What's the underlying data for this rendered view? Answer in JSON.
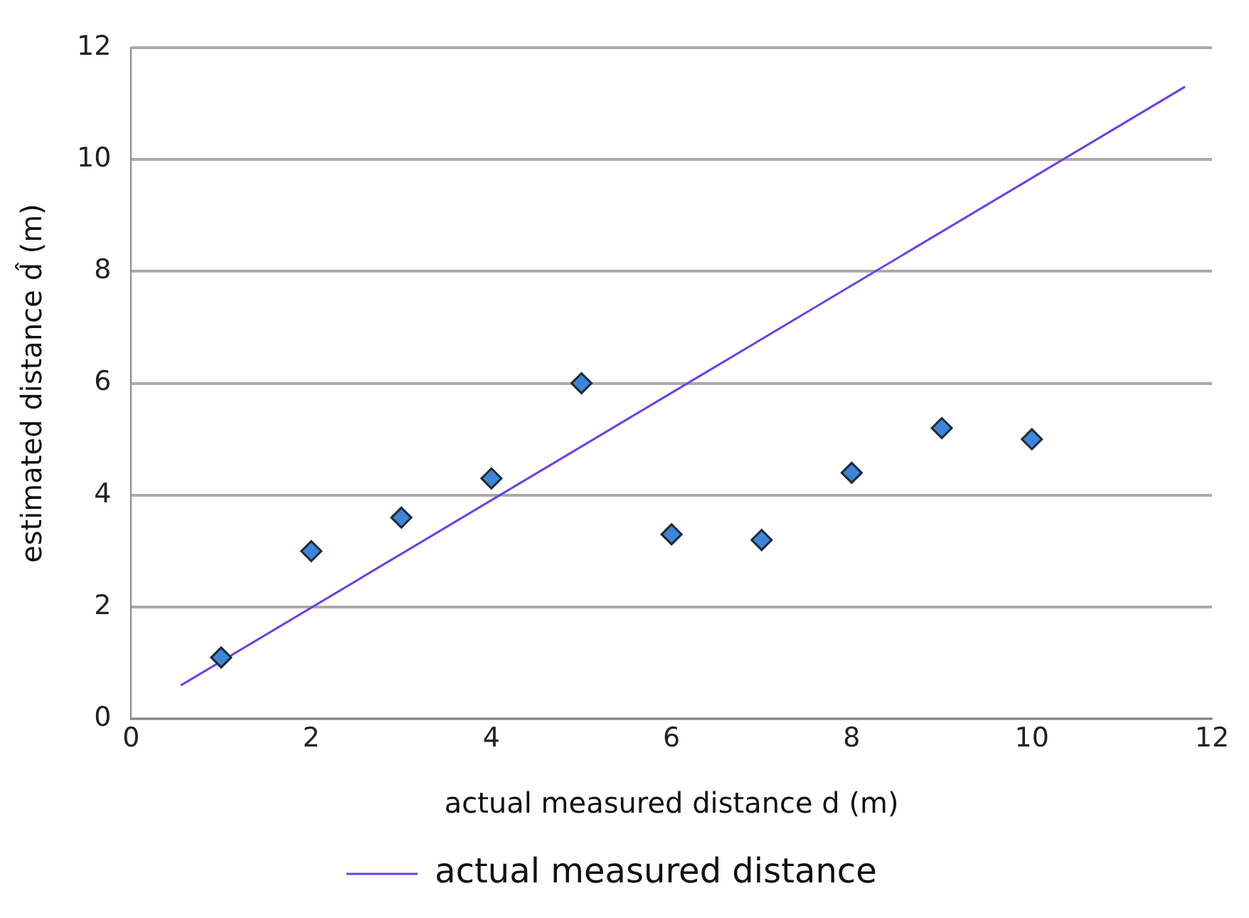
{
  "chart_data": {
    "type": "scatter",
    "xlabel": "actual measured distance d (m)",
    "ylabel": "estimated distance d̂ (m)",
    "xlim": [
      0,
      12
    ],
    "xticks": [
      0,
      2,
      4,
      6,
      8,
      10,
      12
    ],
    "ylim": [
      0,
      12
    ],
    "yticks": [
      0,
      2,
      4,
      6,
      8,
      10,
      12
    ],
    "grid": "y",
    "legend": "bottom",
    "marker": "diamond",
    "series": [
      {
        "color": "#3d85d6",
        "x": [
          1,
          2,
          3,
          4,
          5,
          6,
          7,
          8,
          9,
          10
        ],
        "values": [
          1.1,
          3.0,
          3.6,
          4.3,
          6.0,
          3.3,
          3.2,
          4.4,
          5.2,
          5.0
        ]
      },
      {
        "type": "line",
        "name": "actual measured distance",
        "color": "#6a3df0",
        "x": [
          0.55,
          11.7
        ],
        "values": [
          0.6,
          11.3
        ],
        "marker": "none",
        "line_style": "solid"
      }
    ]
  }
}
